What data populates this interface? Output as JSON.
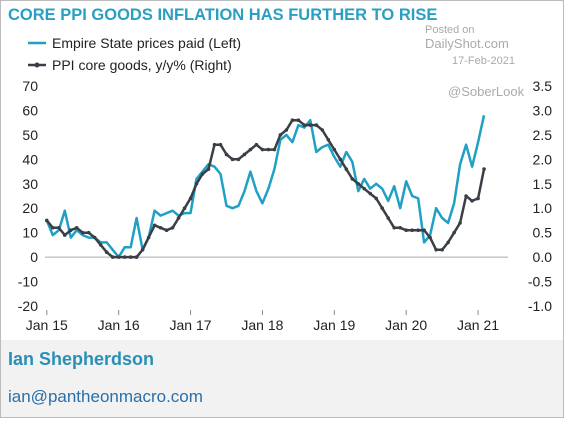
{
  "chart_data": {
    "type": "line",
    "title": "CORE PPI GOODS INFLATION HAS FURTHER TO RISE",
    "watermark": [
      "Posted on",
      "DailyShot.com",
      "17-Feb-2021",
      "@SoberLook"
    ],
    "footer": {
      "name": "Ian Shepherdson",
      "email": "ian@pantheonmacro.com"
    },
    "x": [
      0,
      1,
      2,
      3,
      4,
      5,
      6,
      7,
      8,
      9,
      10,
      11,
      12,
      13,
      14,
      15,
      16,
      17,
      18,
      19,
      20,
      21,
      22,
      23,
      24,
      25,
      26,
      27,
      28,
      29,
      30,
      31,
      32,
      33,
      34,
      35,
      36,
      37,
      38,
      39,
      40,
      41,
      42,
      43,
      44,
      45,
      46,
      47,
      48,
      49,
      50,
      51,
      52,
      53,
      54,
      55,
      56,
      57,
      58,
      59,
      60,
      61,
      62,
      63,
      64,
      65,
      66,
      67,
      68,
      69,
      70,
      71,
      72,
      73
    ],
    "xlim": [
      -0.3,
      77
    ],
    "xticks": [
      {
        "value": 0,
        "label": "Jan 15"
      },
      {
        "value": 12,
        "label": "Jan 16"
      },
      {
        "value": 24,
        "label": "Jan 17"
      },
      {
        "value": 36,
        "label": "Jan 18"
      },
      {
        "value": 48,
        "label": "Jan 19"
      },
      {
        "value": 60,
        "label": "Jan 20"
      },
      {
        "value": 72,
        "label": "Jan 21"
      }
    ],
    "ylim": [
      -20,
      70
    ],
    "yticks": [
      70,
      60,
      50,
      40,
      30,
      20,
      10,
      0,
      -10,
      -20
    ],
    "y2lim": [
      -1,
      3.5
    ],
    "y2ticks": [
      3.5,
      {
        "value": 3,
        "label": "3.0"
      },
      2.5,
      {
        "value": 2,
        "label": "2.0"
      },
      1.5,
      {
        "value": 1,
        "label": "1.0"
      },
      0.5,
      {
        "value": 0,
        "label": "0.0"
      },
      -0.5,
      {
        "value": -1,
        "label": "-1.0"
      }
    ],
    "series": [
      {
        "name": "Empire State prices paid (Left)",
        "color": "#1fa0c4",
        "values": [
          15,
          9,
          11,
          19,
          8,
          11,
          9,
          8,
          8,
          6,
          6,
          3,
          0,
          4,
          4,
          16,
          3,
          8,
          19,
          17,
          18,
          19,
          17,
          18,
          18,
          32,
          35,
          38,
          37,
          34,
          21,
          20,
          21,
          27,
          35,
          27,
          22,
          28,
          36,
          48,
          50,
          47,
          54,
          53,
          56,
          43,
          45,
          46,
          41,
          37,
          43,
          39,
          27,
          32,
          28,
          30,
          28,
          23,
          29,
          20,
          31,
          25,
          24,
          6,
          9,
          20,
          16,
          14,
          22,
          38,
          46,
          37,
          47,
          58
        ]
      },
      {
        "name": "PPI core goods, y/y% (Right)",
        "color": "#3a3f46",
        "axis": "y2",
        "markers": true,
        "values": [
          0.75,
          0.6,
          0.6,
          0.45,
          0.55,
          0.6,
          0.5,
          0.5,
          0.4,
          0.25,
          0.1,
          0,
          0,
          0,
          0,
          0,
          0.15,
          0.4,
          0.65,
          0.6,
          0.55,
          0.6,
          0.8,
          1,
          1.2,
          1.5,
          1.7,
          1.8,
          2.3,
          2.3,
          2.1,
          2,
          2,
          2.1,
          2.2,
          2.3,
          2.2,
          2.2,
          2.2,
          2.5,
          2.6,
          2.8,
          2.8,
          2.7,
          2.7,
          2.7,
          2.6,
          2.4,
          2.2,
          2,
          1.8,
          1.6,
          1.5,
          1.4,
          1.3,
          1.2,
          1,
          0.8,
          0.6,
          0.6,
          0.55,
          0.55,
          0.55,
          0.55,
          0.4,
          0.15,
          0.15,
          0.3,
          0.5,
          0.7,
          1.25,
          1.15,
          1.2,
          1.8
        ]
      }
    ]
  }
}
